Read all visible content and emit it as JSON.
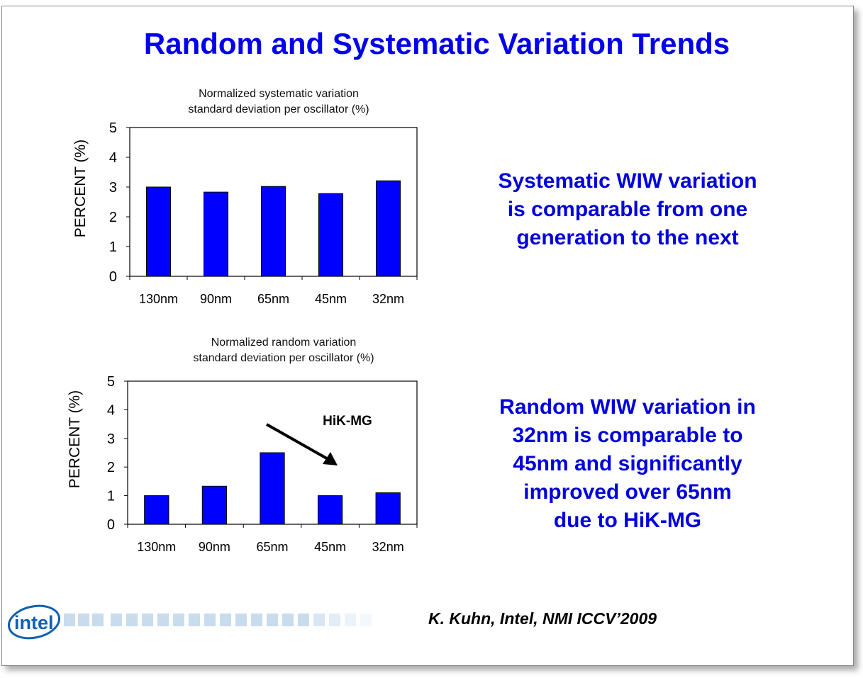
{
  "title": "Random and Systematic Variation Trends",
  "chart_data": [
    {
      "type": "bar",
      "title": [
        "Normalized systematic variation",
        "standard deviation per oscillator (%)"
      ],
      "xlabel": "",
      "ylabel": "PERCENT (%)",
      "ylim": [
        0,
        5
      ],
      "yticks": [
        0,
        1,
        2,
        3,
        4,
        5
      ],
      "categories": [
        "130nm",
        "90nm",
        "65nm",
        "45nm",
        "32nm"
      ],
      "values": [
        3.0,
        2.83,
        3.02,
        2.78,
        3.21
      ],
      "color": "#0000ff"
    },
    {
      "type": "bar",
      "title": [
        "Normalized random variation",
        "standard deviation per oscillator (%)"
      ],
      "xlabel": "",
      "ylabel": "PERCENT (%)",
      "ylim": [
        0,
        5
      ],
      "yticks": [
        0,
        1,
        2,
        3,
        4,
        5
      ],
      "categories": [
        "130nm",
        "90nm",
        "65nm",
        "45nm",
        "32nm"
      ],
      "values": [
        1.0,
        1.33,
        2.5,
        1.0,
        1.1
      ],
      "color": "#0000ff",
      "annotation": "HiK-MG"
    }
  ],
  "notes": {
    "systematic": [
      "Systematic WIW variation",
      "is comparable from one",
      "generation to the next"
    ],
    "random": [
      "Random WIW variation in",
      "32nm is comparable to",
      "45nm and significantly",
      "improved over 65nm",
      "due to HiK-MG"
    ]
  },
  "citation": "K. Kuhn, Intel, NMI ICCV’2009",
  "logo": "intel"
}
